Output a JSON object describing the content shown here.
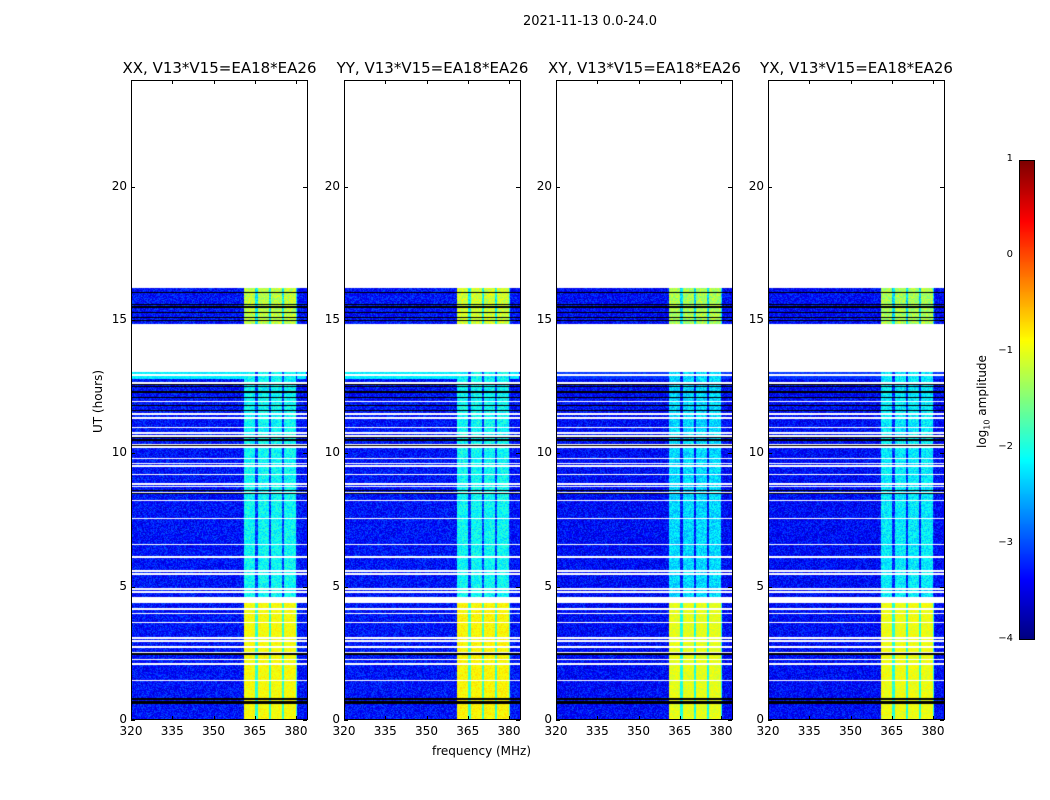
{
  "title": "2021-11-13 0.0-24.0",
  "chart_data": {
    "type": "heatmap",
    "xlabel": "frequency (MHz)",
    "ylabel": "UT (hours)",
    "xlim": [
      320,
      384
    ],
    "ylim": [
      0,
      24
    ],
    "xticks": [
      "320",
      "335",
      "350",
      "365",
      "380"
    ],
    "xtick_values": [
      320,
      335,
      350,
      365,
      380
    ],
    "yticks": [
      "0",
      "5",
      "10",
      "15",
      "20"
    ],
    "ytick_values": [
      0,
      5,
      10,
      15,
      20
    ],
    "data_segments_hours": [
      [
        0,
        4.4
      ],
      [
        4.6,
        13.05
      ],
      [
        14.85,
        16.2
      ]
    ],
    "bright_band_mhz": [
      361,
      380.5
    ],
    "panels": [
      {
        "title": "XX, V13*V15=EA18*EA26",
        "background": -3.3,
        "band_low": -0.9,
        "band_mid": -2.1,
        "band_high": -1.2,
        "cyan_strip": -2.2
      },
      {
        "title": "YY, V13*V15=EA18*EA26",
        "background": -3.3,
        "band_low": -0.85,
        "band_mid": -2.1,
        "band_high": -1.1,
        "cyan_strip": -2.2
      },
      {
        "title": "XY, V13*V15=EA18*EA26",
        "background": -3.35,
        "band_low": -1.0,
        "band_mid": -2.3,
        "band_high": -1.3,
        "cyan_strip": -3.1
      },
      {
        "title": "YX, V13*V15=EA18*EA26",
        "background": -3.35,
        "band_low": -0.95,
        "band_mid": -2.2,
        "band_high": -1.3,
        "cyan_strip": -3.1
      }
    ],
    "colorbar": {
      "label_prefix": "log",
      "label_sub": "10",
      "label_suffix": " amplitude",
      "range": [
        -4,
        1
      ],
      "ticks": [
        "1",
        "0",
        "−1",
        "−2",
        "−3",
        "−4"
      ],
      "tick_values": [
        1,
        0,
        -1,
        -2,
        -3,
        -4
      ],
      "colormap": "jet"
    }
  }
}
